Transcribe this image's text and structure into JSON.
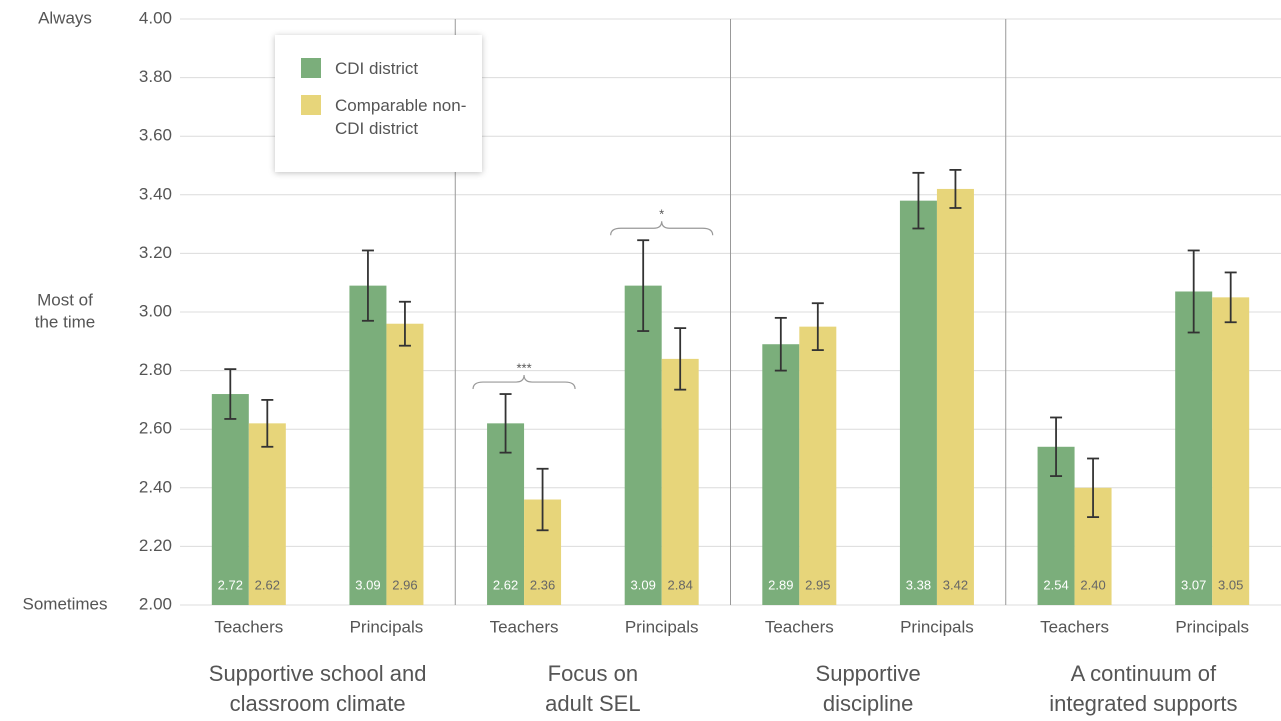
{
  "chart_data": {
    "type": "bar",
    "categories": [
      "Teachers",
      "Principals",
      "Teachers",
      "Principals",
      "Teachers",
      "Principals",
      "Teachers",
      "Principals"
    ],
    "groups": [
      [
        "Supportive school and",
        "classroom climate"
      ],
      [
        "Focus on",
        "adult SEL"
      ],
      [
        "Supportive",
        "discipline"
      ],
      [
        "A continuum of",
        "integrated supports"
      ]
    ],
    "series": [
      {
        "name": "CDI district",
        "color": "#7bae7b",
        "values": [
          2.72,
          3.09,
          2.62,
          3.09,
          2.89,
          3.38,
          2.54,
          3.07
        ],
        "value_labels": [
          "2.72",
          "3.09",
          "2.62",
          "3.09",
          "2.89",
          "3.38",
          "2.54",
          "3.07"
        ],
        "errors": [
          0.085,
          0.12,
          0.1,
          0.155,
          0.09,
          0.095,
          0.1,
          0.14
        ]
      },
      {
        "name": "Comparable non-CDI district",
        "color": "#e7d57a",
        "values": [
          2.62,
          2.96,
          2.36,
          2.84,
          2.95,
          3.42,
          2.4,
          3.05
        ],
        "value_labels": [
          "2.62",
          "2.96",
          "2.36",
          "2.84",
          "2.95",
          "3.42",
          "2.40",
          "3.05"
        ],
        "errors": [
          0.08,
          0.075,
          0.105,
          0.105,
          0.08,
          0.065,
          0.1,
          0.085
        ]
      }
    ],
    "ylim": [
      2,
      4
    ],
    "yticks": [
      {
        "value": 2,
        "label": "2.00"
      },
      {
        "value": 2.2,
        "label": "2.20"
      },
      {
        "value": 2.4,
        "label": "2.40"
      },
      {
        "value": 2.6,
        "label": "2.60"
      },
      {
        "value": 2.8,
        "label": "2.80"
      },
      {
        "value": 3,
        "label": "3.00"
      },
      {
        "value": 3.2,
        "label": "3.20"
      },
      {
        "value": 3.4,
        "label": "3.40"
      },
      {
        "value": 3.6,
        "label": "3.60"
      },
      {
        "value": 3.8,
        "label": "3.80"
      },
      {
        "value": 4,
        "label": "4.00"
      }
    ],
    "y_anchor_labels": [
      {
        "value": 4,
        "label": [
          "Always"
        ]
      },
      {
        "value": 3,
        "label": [
          "Most of",
          "the time"
        ]
      },
      {
        "value": 2,
        "label": [
          "Sometimes"
        ]
      }
    ],
    "significance": [
      {
        "category": 2,
        "text": "***"
      },
      {
        "category": 3,
        "text": "*"
      }
    ],
    "grid": true,
    "legend": "upper-left"
  }
}
